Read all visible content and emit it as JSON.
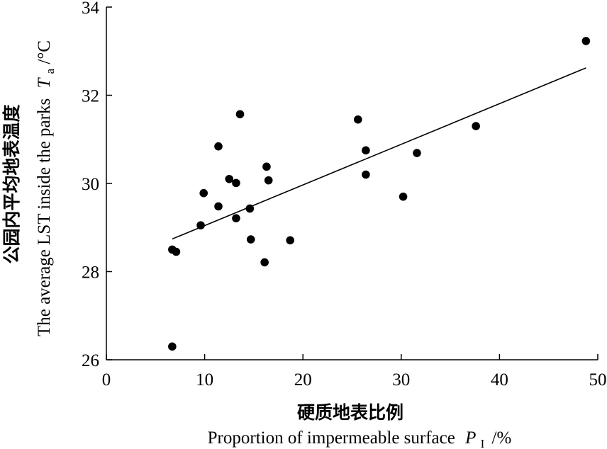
{
  "chart_data": {
    "type": "scatter",
    "xlabel_cn": "硬质地表比例",
    "xlabel_en": "Proportion of impermeable surface",
    "xlabel_symbol": "P",
    "xlabel_subscript": "I",
    "xlabel_unit": "/%",
    "ylabel_cn": "公园内平均地表温度",
    "ylabel_en": "The average LST inside the parks",
    "ylabel_symbol": "T",
    "ylabel_subscript": "a",
    "ylabel_unit": "/°C",
    "xlim": [
      0,
      50
    ],
    "ylim": [
      26,
      34
    ],
    "xticks": [
      0,
      10,
      20,
      30,
      40,
      50
    ],
    "yticks": [
      26,
      28,
      30,
      32,
      34
    ],
    "xtick_labels": [
      "0",
      "10",
      "20",
      "30",
      "40",
      "50"
    ],
    "ytick_labels": [
      "26",
      "28",
      "30",
      "32",
      "34"
    ],
    "grid": false,
    "legend": "none",
    "points": [
      {
        "x": 6.7,
        "y": 26.3
      },
      {
        "x": 6.7,
        "y": 28.5
      },
      {
        "x": 7.1,
        "y": 28.45
      },
      {
        "x": 9.6,
        "y": 29.05
      },
      {
        "x": 9.9,
        "y": 29.78
      },
      {
        "x": 11.4,
        "y": 29.48
      },
      {
        "x": 11.4,
        "y": 30.84
      },
      {
        "x": 12.5,
        "y": 30.1
      },
      {
        "x": 13.2,
        "y": 30.01
      },
      {
        "x": 13.2,
        "y": 29.21
      },
      {
        "x": 13.6,
        "y": 31.57
      },
      {
        "x": 14.6,
        "y": 29.43
      },
      {
        "x": 14.7,
        "y": 28.73
      },
      {
        "x": 16.1,
        "y": 28.21
      },
      {
        "x": 16.3,
        "y": 30.38
      },
      {
        "x": 16.5,
        "y": 30.07
      },
      {
        "x": 18.7,
        "y": 28.71
      },
      {
        "x": 25.6,
        "y": 31.45
      },
      {
        "x": 26.4,
        "y": 30.75
      },
      {
        "x": 26.4,
        "y": 30.2
      },
      {
        "x": 30.2,
        "y": 29.7
      },
      {
        "x": 31.6,
        "y": 30.69
      },
      {
        "x": 37.6,
        "y": 31.3
      },
      {
        "x": 48.8,
        "y": 33.23
      }
    ],
    "trendline": {
      "x1": 6.7,
      "y1": 28.74,
      "x2": 48.8,
      "y2": 32.62
    }
  }
}
